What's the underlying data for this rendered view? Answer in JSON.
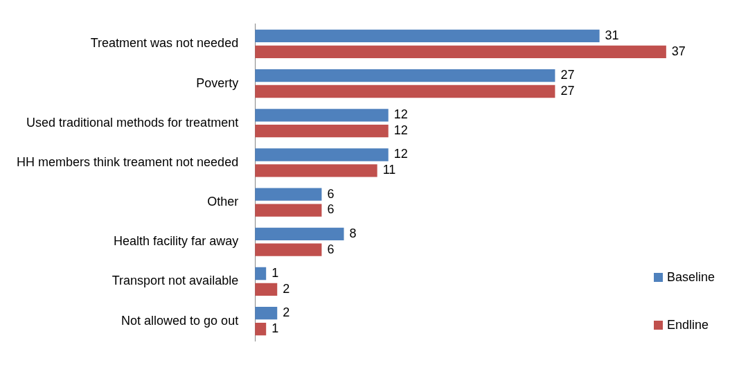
{
  "chart_data": {
    "type": "bar",
    "orientation": "horizontal",
    "categories": [
      "Treatment was not needed",
      "Poverty",
      "Used traditional methods for treatment",
      "HH members think treament not needed",
      "Other",
      "Health facility far away",
      "Transport not available",
      "Not allowed to go out"
    ],
    "series": [
      {
        "name": "Baseline",
        "color": "#4f81bd",
        "values": [
          31,
          27,
          12,
          12,
          6,
          8,
          1,
          2
        ]
      },
      {
        "name": "Endline",
        "color": "#c0504d",
        "values": [
          37,
          27,
          12,
          11,
          6,
          6,
          2,
          1
        ]
      }
    ],
    "data_labels": true,
    "legend": "bottom right",
    "tick_labels": "y"
  }
}
